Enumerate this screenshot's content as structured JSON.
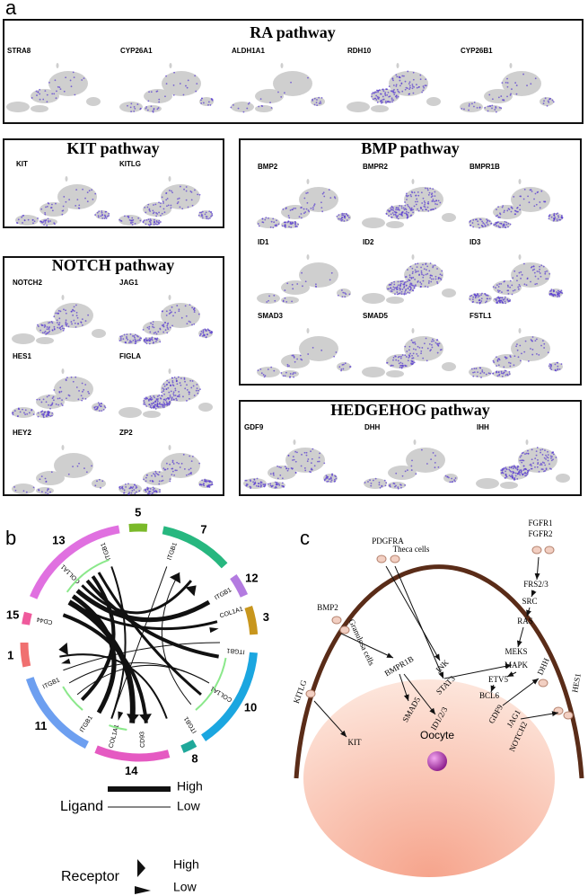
{
  "panel_a": {
    "label": "a",
    "boxes": [
      {
        "title": "RA pathway",
        "genes": [
          "STRA8",
          "CYP26A1",
          "ALDH1A1",
          "RDH10",
          "CYP26B1"
        ]
      },
      {
        "title": "KIT pathway",
        "genes": [
          "KIT",
          "KITLG"
        ]
      },
      {
        "title": "BMP pathway",
        "genes": [
          "BMP2",
          "BMPR2",
          "BMPR1B",
          "ID1",
          "ID2",
          "ID3",
          "SMAD3",
          "SMAD5",
          "FSTL1"
        ]
      },
      {
        "title": "NOTCH pathway",
        "genes": [
          "NOTCH2",
          "JAG1",
          "HES1",
          "FIGLA",
          "HEY2",
          "ZP2"
        ]
      },
      {
        "title": "HEDGEHOG pathway",
        "genes": [
          "GDF9",
          "DHH",
          "IHH"
        ]
      }
    ]
  },
  "panel_b": {
    "label": "b",
    "sectors": [
      "5",
      "7",
      "12",
      "3",
      "10",
      "8",
      "14",
      "11",
      "1",
      "15",
      "13"
    ],
    "receptors": [
      "ITGB1",
      "ITGB1",
      "COL1A1",
      "ITGB1",
      "COL1A1",
      "ITGB1",
      "CD93",
      "COL1A1",
      "ITGB1",
      "ITGB1",
      "CD44",
      "COL1A1",
      "ITGB1"
    ],
    "legend": {
      "ligand": "Ligand",
      "receptor": "Receptor",
      "high": "High",
      "low": "Low"
    }
  },
  "panel_c": {
    "label": "c",
    "labels": [
      "FGFR1",
      "FGFR2",
      "PDGFRA",
      "Theca cells",
      "FRS2/3",
      "SRC",
      "RAS",
      "MEKS",
      "MAPK",
      "ETV5",
      "BCL6",
      "GDF9",
      "JAG1",
      "BMP2",
      "Granulosa cells",
      "BMPR1B",
      "JNK",
      "STAT3",
      "SMAD5",
      "ID1/2/3",
      "KIT",
      "KITLG",
      "DHH",
      "NOTCH2",
      "HES1",
      "Oocyte"
    ]
  }
}
